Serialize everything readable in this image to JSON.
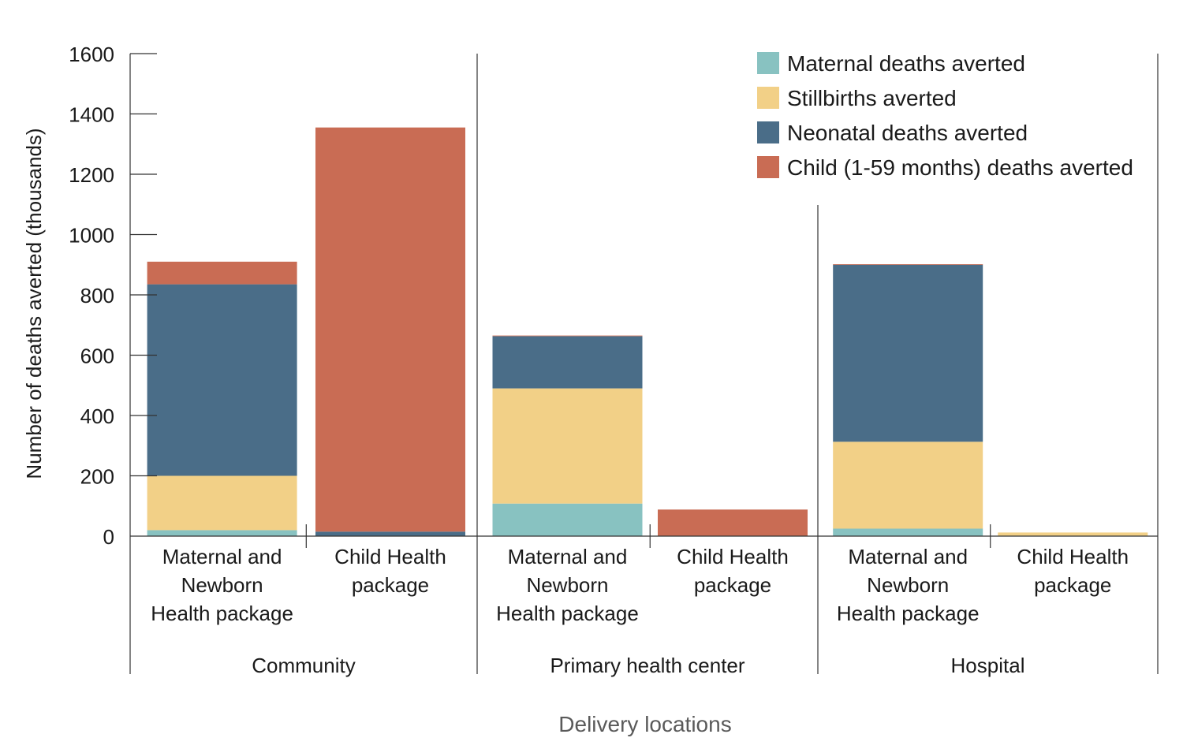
{
  "chart_data": {
    "type": "bar",
    "stacked": true,
    "title": "",
    "xlabel": "Delivery locations",
    "ylabel": "Number of deaths averted (thousands)",
    "ylim": [
      0,
      1600
    ],
    "yticks": [
      0,
      200,
      400,
      600,
      800,
      1000,
      1200,
      1400,
      1600
    ],
    "grid": false,
    "legend_position": "top-right",
    "groups": [
      {
        "label": "Community",
        "categories": [
          "Maternal and\nNewborn\nHealth package",
          "Child Health\npackage"
        ]
      },
      {
        "label": "Primary health center",
        "categories": [
          "Maternal and\nNewborn\nHealth package",
          "Child Health\npackage"
        ]
      },
      {
        "label": "Hospital",
        "categories": [
          "Maternal and\nNewborn\nHealth package",
          "Child Health\npackage"
        ]
      }
    ],
    "series": [
      {
        "name": "Maternal deaths averted",
        "color": "#88c2c1",
        "values": [
          20,
          0,
          108,
          0,
          25,
          0
        ]
      },
      {
        "name": "Stillbirths averted",
        "color": "#f2d087",
        "values": [
          180,
          0,
          382,
          0,
          288,
          12
        ]
      },
      {
        "name": "Neonatal deaths averted",
        "color": "#4a6d88",
        "values": [
          635,
          15,
          173,
          0,
          587,
          0
        ]
      },
      {
        "name": "Child (1-59 months) deaths averted",
        "color": "#c96c54",
        "values": [
          75,
          1340,
          2,
          88,
          2,
          0
        ]
      }
    ]
  }
}
